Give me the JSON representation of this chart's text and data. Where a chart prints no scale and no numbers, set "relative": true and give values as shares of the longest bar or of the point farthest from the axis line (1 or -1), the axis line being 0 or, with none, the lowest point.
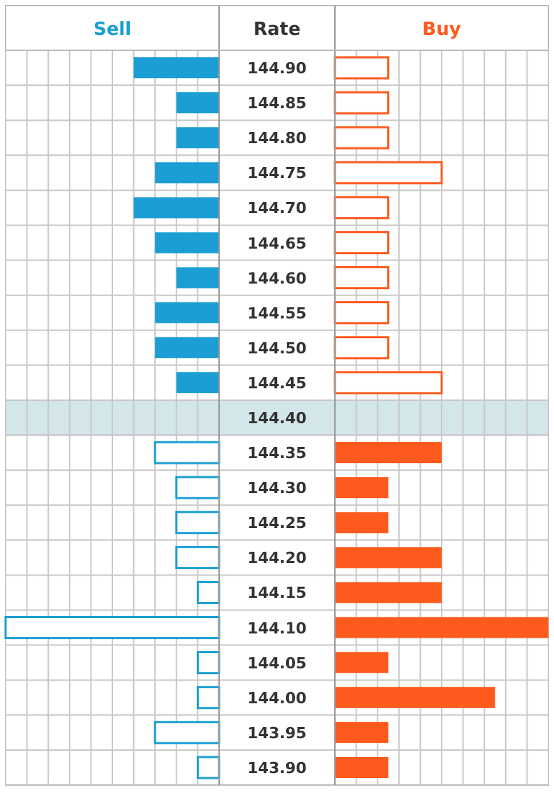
{
  "chart_data": [
    {
      "type": "bar",
      "orientation": "horizontal",
      "relative": true,
      "ylabel": "Rate",
      "categories": [
        "144.90",
        "144.85",
        "144.80",
        "144.75",
        "144.70",
        "144.65",
        "144.60",
        "144.55",
        "144.50",
        "144.45",
        "144.40",
        "144.35",
        "144.30",
        "144.25",
        "144.20",
        "144.15",
        "144.10",
        "144.05",
        "144.00",
        "143.95",
        "143.90"
      ],
      "series": [
        {
          "name": "Sell",
          "color": "#1a9ed3",
          "values": [
            -0.4,
            -0.2,
            -0.2,
            -0.3,
            -0.4,
            -0.3,
            -0.2,
            -0.3,
            -0.3,
            -0.2,
            0,
            -0.3,
            -0.2,
            -0.2,
            -0.2,
            -0.1,
            -1,
            -0.1,
            -0.1,
            -0.3,
            -0.1
          ]
        }
      ],
      "bands": [
        {
          "axis": "y",
          "from": "144.40",
          "to": "144.40",
          "color": "#d3e6ea"
        }
      ],
      "grid": true,
      "legend": "top"
    },
    {
      "type": "bar",
      "orientation": "horizontal",
      "relative": true,
      "tick_labels": false,
      "categories": [
        "144.90",
        "144.85",
        "144.80",
        "144.75",
        "144.70",
        "144.65",
        "144.60",
        "144.55",
        "144.50",
        "144.45",
        "144.40",
        "144.35",
        "144.30",
        "144.25",
        "144.20",
        "144.15",
        "144.10",
        "144.05",
        "144.00",
        "143.95",
        "143.90"
      ],
      "series": [
        {
          "name": "Buy",
          "color": "#fe5a1d",
          "values": [
            0.25,
            0.25,
            0.25,
            0.5,
            0.25,
            0.25,
            0.25,
            0.25,
            0.25,
            0.5,
            0,
            0.5,
            0.25,
            0.25,
            0.5,
            0.5,
            1,
            0.25,
            0.75,
            0.25,
            0.25
          ]
        }
      ],
      "bands": [
        {
          "axis": "y",
          "from": "144.40",
          "to": "144.40",
          "color": "#d3e6ea"
        }
      ],
      "grid": true,
      "legend": "top"
    }
  ]
}
